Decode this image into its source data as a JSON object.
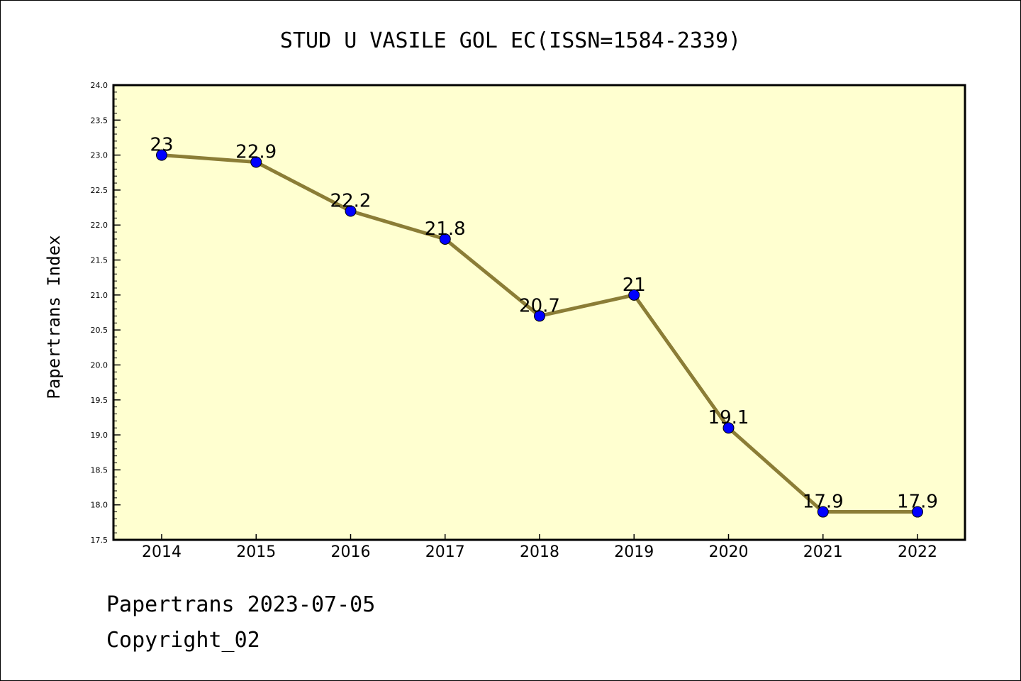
{
  "chart_data": {
    "type": "line",
    "title": "STUD U VASILE GOL EC(ISSN=1584-2339)",
    "xlabel": "",
    "ylabel": "Papertrans Index",
    "categories": [
      "2014",
      "2015",
      "2016",
      "2017",
      "2018",
      "2019",
      "2020",
      "2021",
      "2022"
    ],
    "series": [
      {
        "values": [
          23,
          22.9,
          22.2,
          21.8,
          20.7,
          21,
          19.1,
          17.9,
          17.9
        ]
      }
    ],
    "data_labels": [
      "23",
      "22.9",
      "22.2",
      "21.8",
      "20.7",
      "21",
      "19.1",
      "17.9",
      "17.9"
    ],
    "ylim": [
      17.5,
      24.0
    ],
    "yticks": [
      "17.5",
      "18.0",
      "18.5",
      "19.0",
      "19.5",
      "20.0",
      "20.5",
      "21.0",
      "21.5",
      "22.0",
      "22.5",
      "23.0",
      "23.5",
      "24.0"
    ],
    "grid": false,
    "colors": {
      "plot_background": "#ffffd0",
      "line": "#8b7d36",
      "marker": "#0000ff"
    }
  },
  "footer": {
    "line1": "Papertrans 2023-07-05",
    "line2": "Copyright_02"
  }
}
